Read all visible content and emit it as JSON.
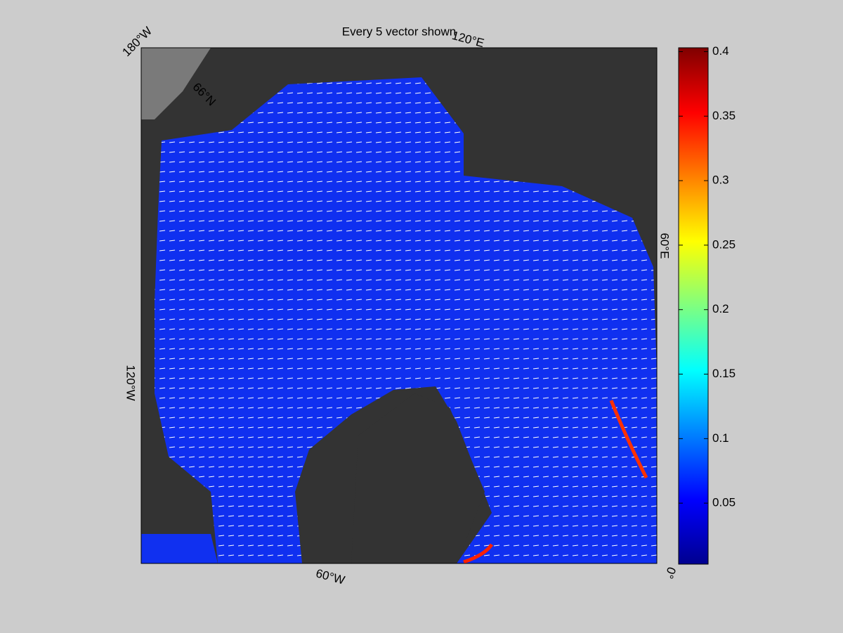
{
  "title": "Every 5 vector shown",
  "map_labels": [
    "180°W",
    "120°E",
    "60°E",
    "0°",
    "60°W",
    "120°W",
    "66°N"
  ],
  "colorbar": {
    "colormap": "jet",
    "clim": [
      0.0027,
      0.403
    ],
    "ticks": [
      0.05,
      0.1,
      0.15,
      0.2,
      0.25,
      0.3,
      0.35,
      0.4
    ]
  }
}
